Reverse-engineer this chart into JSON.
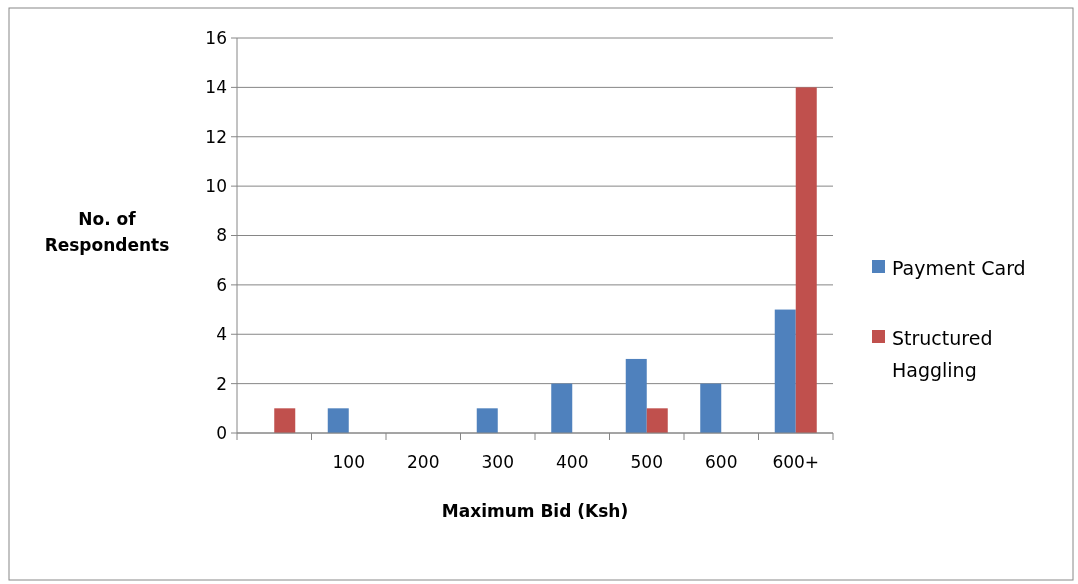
{
  "chart_data": {
    "type": "bar",
    "xlabel": "Maximum Bid (Ksh)",
    "ylabel": "No. of\nRespondents",
    "categories": [
      null,
      "100",
      "200",
      "300",
      "400",
      "500",
      "600",
      "600+"
    ],
    "series": [
      {
        "name": "Payment Card",
        "color": "#4f81bd",
        "values": [
          0,
          1,
          0,
          1,
          2,
          3,
          2,
          5
        ]
      },
      {
        "name": "Structured Haggling",
        "color": "#c0504d",
        "values": [
          1,
          0,
          0,
          0,
          0,
          1,
          0,
          14
        ]
      }
    ],
    "ylim": [
      0,
      16
    ],
    "yticks": [
      0,
      2,
      4,
      6,
      8,
      10,
      12,
      14,
      16
    ],
    "grid": "y",
    "legend": "right"
  }
}
